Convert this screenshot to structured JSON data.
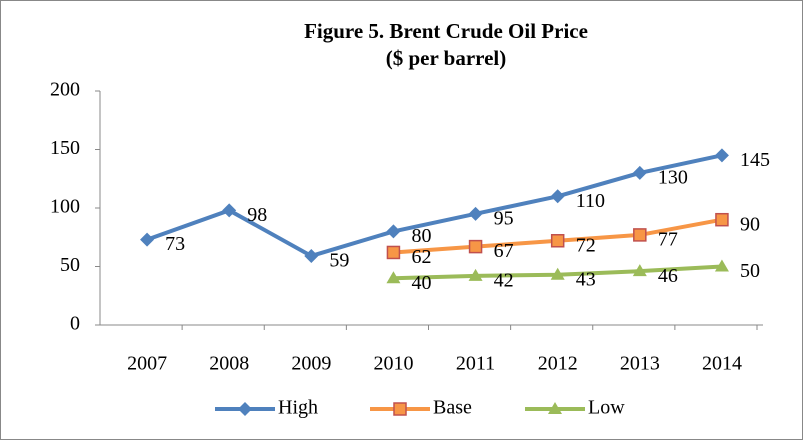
{
  "chart_data": {
    "type": "line",
    "title": "Figure 5. Brent Crude Oil Price",
    "subtitle": "($ per barrel)",
    "categories": [
      "2007",
      "2008",
      "2009",
      "2010",
      "2011",
      "2012",
      "2013",
      "2014"
    ],
    "series": [
      {
        "name": "High",
        "color": "#4f81bd",
        "marker": "diamond",
        "values": [
          73,
          98,
          59,
          80,
          95,
          110,
          130,
          145
        ]
      },
      {
        "name": "Base",
        "color": "#f79646",
        "marker": "square",
        "values": [
          null,
          null,
          null,
          62,
          67,
          72,
          77,
          90
        ]
      },
      {
        "name": "Low",
        "color": "#9bbb59",
        "marker": "triangle",
        "values": [
          null,
          null,
          null,
          40,
          42,
          43,
          46,
          50
        ]
      }
    ],
    "ylim": [
      0,
      200
    ],
    "yticks": [
      0,
      50,
      100,
      150,
      200
    ],
    "grid": false,
    "legend": "bottom",
    "data_labels": true
  }
}
